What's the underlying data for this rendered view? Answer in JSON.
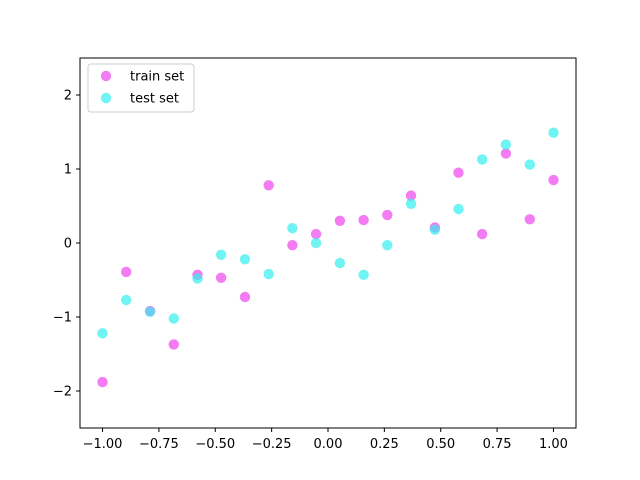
{
  "chart_data": {
    "type": "scatter",
    "xlim": [
      -1.1,
      1.1
    ],
    "ylim": [
      -2.5,
      2.5
    ],
    "xticks": [
      "−1.00",
      "−0.75",
      "−0.50",
      "−0.25",
      "0.00",
      "0.25",
      "0.50",
      "0.75",
      "1.00"
    ],
    "xtick_values": [
      -1.0,
      -0.75,
      -0.5,
      -0.25,
      0.0,
      0.25,
      0.5,
      0.75,
      1.0
    ],
    "yticks": [
      "−2",
      "−1",
      "0",
      "1",
      "2"
    ],
    "ytick_values": [
      -2,
      -1,
      0,
      1,
      2
    ],
    "grid": false,
    "legend_position": "upper left",
    "series": [
      {
        "name": "train set",
        "color": "#ee44ee",
        "x": [
          -1.0,
          -0.895,
          -0.789,
          -0.684,
          -0.579,
          -0.474,
          -0.368,
          -0.263,
          -0.158,
          -0.053,
          0.053,
          0.158,
          0.263,
          0.368,
          0.474,
          0.579,
          0.684,
          0.789,
          0.895,
          1.0
        ],
        "y": [
          -1.88,
          -0.39,
          -0.92,
          -1.37,
          -0.43,
          -0.47,
          -0.73,
          0.78,
          -0.03,
          0.12,
          0.3,
          0.31,
          0.38,
          0.64,
          0.21,
          0.95,
          0.12,
          1.21,
          0.32,
          0.85
        ]
      },
      {
        "name": "test set",
        "color": "#33eeee",
        "x": [
          -1.0,
          -0.895,
          -0.789,
          -0.684,
          -0.579,
          -0.474,
          -0.368,
          -0.263,
          -0.158,
          -0.053,
          0.053,
          0.158,
          0.263,
          0.368,
          0.474,
          0.579,
          0.684,
          0.789,
          0.895,
          1.0
        ],
        "y": [
          -1.22,
          -0.77,
          -0.93,
          -1.02,
          -0.48,
          -0.16,
          -0.22,
          -0.42,
          0.2,
          0.0,
          -0.27,
          -0.43,
          -0.03,
          0.53,
          0.18,
          0.46,
          1.13,
          1.33,
          1.06,
          1.49
        ]
      }
    ]
  }
}
